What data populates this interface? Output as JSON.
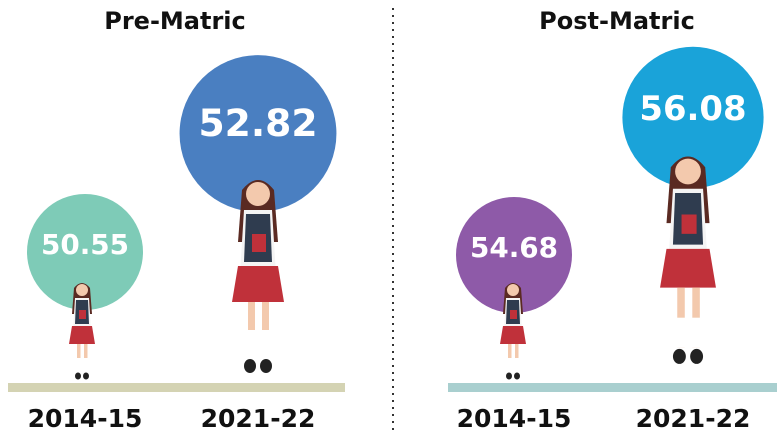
{
  "chart_data": [
    {
      "type": "circle",
      "title": "Pre-Matric",
      "categories": [
        "2014-15",
        "2021-22"
      ],
      "values": [
        50.55,
        52.82
      ],
      "colors": [
        "#7ecbb7",
        "#4a7fc1"
      ]
    },
    {
      "type": "circle",
      "title": "Post-Matric",
      "categories": [
        "2014-15",
        "2021-22"
      ],
      "values": [
        54.68,
        56.08
      ],
      "colors": [
        "#8e5aa8",
        "#1aa3d9"
      ]
    }
  ]
}
